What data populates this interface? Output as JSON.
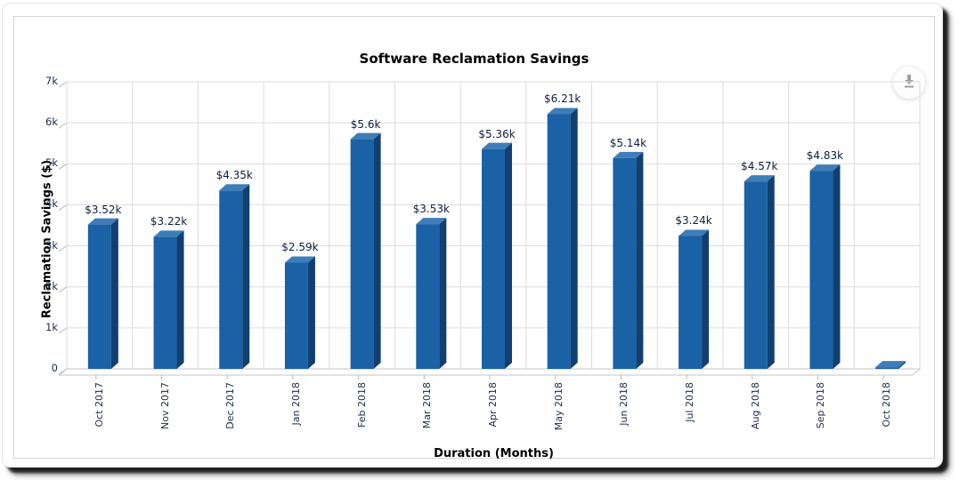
{
  "chart": {
    "export_icon": "download-arrow"
  },
  "chart_data": {
    "type": "bar",
    "style_3d": true,
    "title": "Software Reclamation Savings",
    "xlabel": "Duration (Months)",
    "ylabel": "Reclamation Savings ($)",
    "categories": [
      "Oct 2017",
      "Nov 2017",
      "Dec 2017",
      "Jan 2018",
      "Feb 2018",
      "Mar 2018",
      "Apr 2018",
      "May 2018",
      "Jun 2018",
      "Jul 2018",
      "Aug 2018",
      "Sep 2018",
      "Oct 2018"
    ],
    "values": [
      3520,
      3220,
      4350,
      2590,
      5600,
      3530,
      5360,
      6210,
      5140,
      3240,
      4570,
      4830,
      40
    ],
    "value_labels": [
      "$3.52k",
      "$3.22k",
      "$4.35k",
      "$2.59k",
      "$5.6k",
      "$3.53k",
      "$5.36k",
      "$6.21k",
      "$5.14k",
      "$3.24k",
      "$4.57k",
      "$4.83k",
      ""
    ],
    "y_ticks_top_to_bottom": [
      "7k",
      "6k",
      "5k",
      "4k",
      "3k",
      "2k",
      "1k",
      "0"
    ],
    "ylim": [
      0,
      7000
    ],
    "grid": true,
    "legend": "none",
    "colors": {
      "bar_front": "#1a61a5",
      "bar_side": "#123f72",
      "bar_top": "#3e7db9",
      "gridline": "#dcdcdc",
      "axis_line": "#b8b8b8",
      "floor_stroke": "#c6c6c6",
      "tick_text": "#1a2b4d",
      "value_text": "#0c1e3e",
      "title_text": "#000000",
      "export_icon": "#9e9e9e"
    }
  }
}
